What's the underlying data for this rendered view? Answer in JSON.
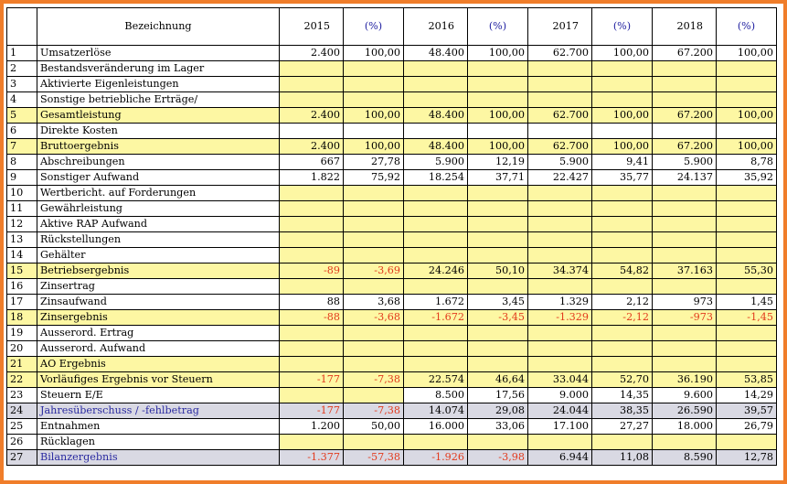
{
  "header": {
    "nr": "",
    "label": "Bezeichnung",
    "years": [
      "2015",
      "2016",
      "2017",
      "2018"
    ],
    "pct": "(%)"
  },
  "rows": [
    {
      "nr": "1",
      "label": "Umsatzerlöse",
      "style": "",
      "cells": [
        "2.400",
        "100,00",
        "48.400",
        "100,00",
        "62.700",
        "100,00",
        "67.200",
        "100,00"
      ]
    },
    {
      "nr": "2",
      "label": "Bestandsveränderung im Lager",
      "style": "",
      "cells": [
        "",
        "",
        "",
        "",
        "",
        "",
        "",
        ""
      ]
    },
    {
      "nr": "3",
      "label": "Aktivierte Eigenleistungen",
      "style": "",
      "cells": [
        "",
        "",
        "",
        "",
        "",
        "",
        "",
        ""
      ]
    },
    {
      "nr": "4",
      "label": "Sonstige betriebliche Erträge/",
      "style": "",
      "cells": [
        "",
        "",
        "",
        "",
        "",
        "",
        "",
        ""
      ]
    },
    {
      "nr": "5",
      "label": "Gesamtleistung",
      "style": "yellow",
      "cells": [
        "2.400",
        "100,00",
        "48.400",
        "100,00",
        "62.700",
        "100,00",
        "67.200",
        "100,00"
      ]
    },
    {
      "nr": "6",
      "label": "Direkte Kosten",
      "style": "",
      "cells": [
        "",
        "",
        "",
        "",
        "",
        "",
        "",
        ""
      ]
    },
    {
      "nr": "7",
      "label": "Bruttoergebnis",
      "style": "yellow",
      "cells": [
        "2.400",
        "100,00",
        "48.400",
        "100,00",
        "62.700",
        "100,00",
        "67.200",
        "100,00"
      ]
    },
    {
      "nr": "8",
      "label": "Abschreibungen",
      "style": "",
      "cells": [
        "667",
        "27,78",
        "5.900",
        "12,19",
        "5.900",
        "9,41",
        "5.900",
        "8,78"
      ]
    },
    {
      "nr": "9",
      "label": "Sonstiger Aufwand",
      "style": "",
      "cells": [
        "1.822",
        "75,92",
        "18.254",
        "37,71",
        "22.427",
        "35,77",
        "24.137",
        "35,92"
      ]
    },
    {
      "nr": "10",
      "label": "Wertbericht. auf Forderungen",
      "style": "",
      "cells": [
        "",
        "",
        "",
        "",
        "",
        "",
        "",
        ""
      ]
    },
    {
      "nr": "11",
      "label": "Gewährleistung",
      "style": "",
      "cells": [
        "",
        "",
        "",
        "",
        "",
        "",
        "",
        ""
      ]
    },
    {
      "nr": "12",
      "label": "Aktive RAP Aufwand",
      "style": "",
      "cells": [
        "",
        "",
        "",
        "",
        "",
        "",
        "",
        ""
      ]
    },
    {
      "nr": "13",
      "label": "Rückstellungen",
      "style": "",
      "cells": [
        "",
        "",
        "",
        "",
        "",
        "",
        "",
        ""
      ]
    },
    {
      "nr": "14",
      "label": "Gehälter",
      "style": "",
      "cells": [
        "",
        "",
        "",
        "",
        "",
        "",
        "",
        ""
      ]
    },
    {
      "nr": "15",
      "label": "Betriebsergebnis",
      "style": "yellow",
      "cells": [
        "-89",
        "-3,69",
        "24.246",
        "50,10",
        "34.374",
        "54,82",
        "37.163",
        "55,30"
      ]
    },
    {
      "nr": "16",
      "label": "Zinsertrag",
      "style": "",
      "cells": [
        "",
        "",
        "",
        "",
        "",
        "",
        "",
        ""
      ]
    },
    {
      "nr": "17",
      "label": "Zinsaufwand",
      "style": "",
      "cells": [
        "88",
        "3,68",
        "1.672",
        "3,45",
        "1.329",
        "2,12",
        "973",
        "1,45"
      ]
    },
    {
      "nr": "18",
      "label": "Zinsergebnis",
      "style": "yellow",
      "cells": [
        "-88",
        "-3,68",
        "-1.672",
        "-3,45",
        "-1.329",
        "-2,12",
        "-973",
        "-1,45"
      ]
    },
    {
      "nr": "19",
      "label": "Ausserord. Ertrag",
      "style": "",
      "cells": [
        "",
        "",
        "",
        "",
        "",
        "",
        "",
        ""
      ]
    },
    {
      "nr": "20",
      "label": "Ausserord. Aufwand",
      "style": "",
      "cells": [
        "",
        "",
        "",
        "",
        "",
        "",
        "",
        ""
      ]
    },
    {
      "nr": "21",
      "label": "AO Ergebnis",
      "style": "yellow",
      "cells": [
        "",
        "",
        "",
        "",
        "",
        "",
        "",
        ""
      ]
    },
    {
      "nr": "22",
      "label": "Vorläufiges Ergebnis vor Steuern",
      "style": "yellow",
      "cells": [
        "-177",
        "-7,38",
        "22.574",
        "46,64",
        "33.044",
        "52,70",
        "36.190",
        "53,85"
      ]
    },
    {
      "nr": "23",
      "label": "Steuern E/E",
      "style": "",
      "cells": [
        "",
        "",
        "8.500",
        "17,56",
        "9.000",
        "14,35",
        "9.600",
        "14,29"
      ]
    },
    {
      "nr": "24",
      "label": "Jahresüberschuss / -fehlbetrag",
      "style": "grey",
      "cells": [
        "-177",
        "-7,38",
        "14.074",
        "29,08",
        "24.044",
        "38,35",
        "26.590",
        "39,57"
      ]
    },
    {
      "nr": "25",
      "label": "Entnahmen",
      "style": "",
      "cells": [
        "1.200",
        "50,00",
        "16.000",
        "33,06",
        "17.100",
        "27,27",
        "18.000",
        "26,79"
      ]
    },
    {
      "nr": "26",
      "label": "Rücklagen",
      "style": "",
      "cells": [
        "",
        "",
        "",
        "",
        "",
        "",
        "",
        ""
      ]
    },
    {
      "nr": "27",
      "label": "Bilanzergebnis",
      "style": "grey",
      "cells": [
        "-1.377",
        "-57,38",
        "-1.926",
        "-3,98",
        "6.944",
        "11,08",
        "8.590",
        "12,78"
      ]
    }
  ],
  "colors": {
    "frame": "#f07d2a",
    "highlight": "#fdf7a3",
    "grey": "#d9d9e3",
    "negative": "#e23a1d",
    "pct_header": "#1f1fa0"
  }
}
